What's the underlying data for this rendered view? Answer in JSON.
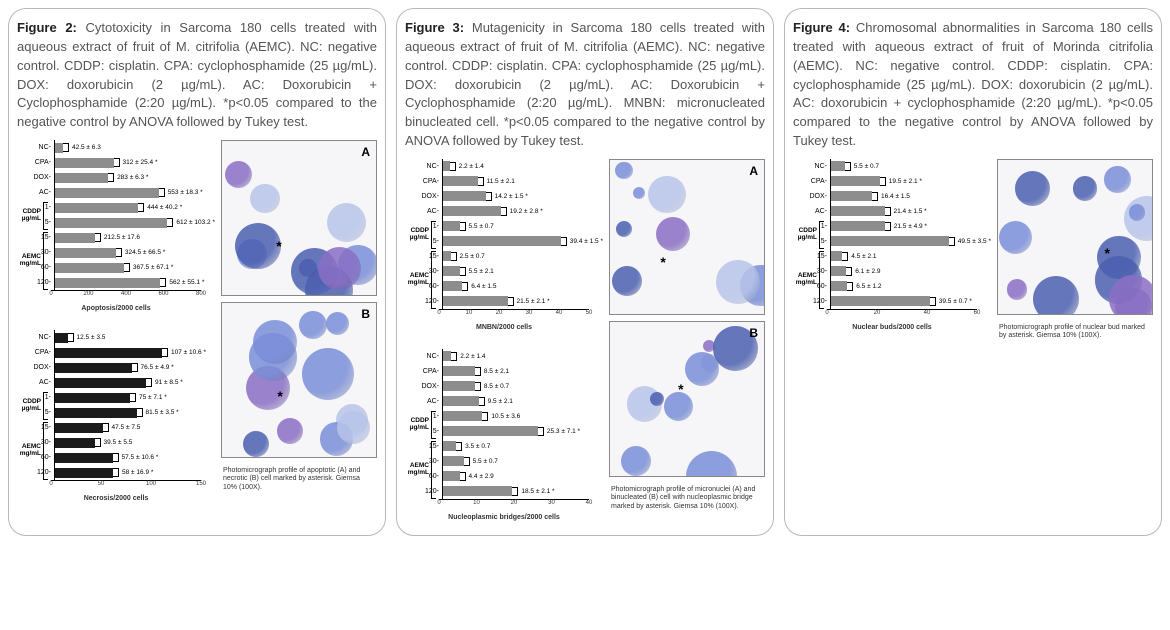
{
  "colors": {
    "bar_gray": "#8d8d8d",
    "bar_black": "#1b1b1b",
    "cell_light": "#b8c4ea",
    "cell_mid": "#7a8ed8",
    "cell_dark": "#4b5fb0",
    "cell_purple": "#8a6fc4",
    "bg": "#f6f5f8"
  },
  "figures": [
    {
      "title_bold": "Figure 2:",
      "title_rest": " Cytotoxicity in Sarcoma 180 cells treated with aqueous extract of fruit of M. citrifolia (AEMC). NC: negative control. CDDP: cisplatin. CPA: cyclophosphamide (25 µg/mL). DOX: doxorubicin (2 µg/mL). AC: Doxorubicin + Cyclophosphamide (2:20 µg/mL). *p<0.05 compared to the negative control by ANOVA followed by Tukey test.",
      "charts": [
        {
          "xlabel": "Apoptosis/2000 cells",
          "xmax": 800,
          "xticks": [
            0,
            200,
            400,
            600,
            800
          ],
          "bar_color": "#8d8d8d",
          "groups": [
            {
              "label": null,
              "rows": [
                {
                  "y": "NC",
                  "v": 42.5,
                  "t": "42.5 ± 6.3"
                },
                {
                  "y": "CPA",
                  "v": 312,
                  "t": "312 ± 25.4 *"
                },
                {
                  "y": "DOX",
                  "v": 283,
                  "t": "283 ± 6.3 *"
                },
                {
                  "y": "AC",
                  "v": 553,
                  "t": "553 ± 18.3 *"
                }
              ]
            },
            {
              "label": "CDDP µg/mL",
              "rows": [
                {
                  "y": "1",
                  "v": 444,
                  "t": "444 ± 40.2 *"
                },
                {
                  "y": "5",
                  "v": 612,
                  "t": "612 ± 103.2 *"
                }
              ]
            },
            {
              "label": "AEMC mg/mL",
              "rows": [
                {
                  "y": "15",
                  "v": 212.5,
                  "t": "212.5 ± 17.6"
                },
                {
                  "y": "30",
                  "v": 324.5,
                  "t": "324.5 ± 66.5 *"
                },
                {
                  "y": "60",
                  "v": 367.5,
                  "t": "367.5 ± 67.1 *"
                },
                {
                  "y": "120",
                  "v": 562,
                  "t": "562 ± 55.1 *"
                }
              ]
            }
          ]
        },
        {
          "xlabel": "Necrosis/2000 cells",
          "xmax": 150,
          "xticks": [
            0,
            50,
            100,
            150
          ],
          "bar_color": "#1b1b1b",
          "groups": [
            {
              "label": null,
              "rows": [
                {
                  "y": "NC",
                  "v": 12.5,
                  "t": "12.5 ± 3.5"
                },
                {
                  "y": "CPA",
                  "v": 107,
                  "t": "107 ± 10.6 *"
                },
                {
                  "y": "DOX",
                  "v": 76.5,
                  "t": "76.5 ± 4.9 *"
                },
                {
                  "y": "AC",
                  "v": 91,
                  "t": "91 ± 8.5 *"
                }
              ]
            },
            {
              "label": "CDDP µg/mL",
              "rows": [
                {
                  "y": "1",
                  "v": 75,
                  "t": "75 ± 7.1 *"
                },
                {
                  "y": "5",
                  "v": 81.5,
                  "t": "81.5 ± 3.5 *"
                }
              ]
            },
            {
              "label": "AEMC mg/mL",
              "rows": [
                {
                  "y": "15",
                  "v": 47.5,
                  "t": "47.5 ± 7.5"
                },
                {
                  "y": "30",
                  "v": 39.5,
                  "t": "39.5 ± 5.5"
                },
                {
                  "y": "60",
                  "v": 57.5,
                  "t": "57.5 ± 10.6 *"
                },
                {
                  "y": "120",
                  "v": 58,
                  "t": "58 ± 16.9 *"
                }
              ]
            }
          ]
        }
      ],
      "micrographs": [
        {
          "letter": "A",
          "caption": null
        },
        {
          "letter": "B",
          "caption": "Photomicrograph profile of apoptotic (A) and necrotic (B) cell marked by asterisk. Giemsa 10% (100X)."
        }
      ]
    },
    {
      "title_bold": "Figure 3:",
      "title_rest": " Mutagenicity in Sarcoma 180 cells treated with aqueous extract of fruit of M. citrifolia (AEMC). NC: negative control. CDDP: cisplatin. CPA: cyclophosphamide (25 µg/mL). DOX: doxorubicin (2 µg/mL). AC: Doxorubicin + Cyclophosphamide (2:20 µg/mL). MNBN: micronucleated binucleated cell. *p<0.05 compared to the negative control by ANOVA followed by Tukey test.",
      "charts": [
        {
          "xlabel": "MNBN/2000 cells",
          "xmax": 50,
          "xticks": [
            0,
            10,
            20,
            30,
            40,
            50
          ],
          "bar_color": "#8d8d8d",
          "groups": [
            {
              "label": null,
              "rows": [
                {
                  "y": "NC",
                  "v": 2.2,
                  "t": "2.2 ± 1.4"
                },
                {
                  "y": "CPA",
                  "v": 11.5,
                  "t": "11.5 ± 2.1"
                },
                {
                  "y": "DOX",
                  "v": 14.2,
                  "t": "14.2 ± 1.5 *"
                },
                {
                  "y": "AC",
                  "v": 19.2,
                  "t": "19.2 ± 2.8 *"
                }
              ]
            },
            {
              "label": "CDDP µg/mL",
              "rows": [
                {
                  "y": "1",
                  "v": 5.5,
                  "t": "5.5 ± 0.7"
                },
                {
                  "y": "5",
                  "v": 39.4,
                  "t": "39.4 ± 1.5 *"
                }
              ]
            },
            {
              "label": "AEMC mg/mL",
              "rows": [
                {
                  "y": "15",
                  "v": 2.5,
                  "t": "2.5 ± 0.7"
                },
                {
                  "y": "30",
                  "v": 5.5,
                  "t": "5.5 ± 2.1"
                },
                {
                  "y": "60",
                  "v": 6.4,
                  "t": "6.4 ± 1.5"
                },
                {
                  "y": "120",
                  "v": 21.5,
                  "t": "21.5 ± 2.1 *"
                }
              ]
            }
          ]
        },
        {
          "xlabel": "Nucleoplasmic bridges/2000 cells",
          "xmax": 40,
          "xticks": [
            0,
            10,
            20,
            30,
            40
          ],
          "bar_color": "#8d8d8d",
          "groups": [
            {
              "label": null,
              "rows": [
                {
                  "y": "NC",
                  "v": 2.2,
                  "t": "2.2 ± 1.4"
                },
                {
                  "y": "CPA",
                  "v": 8.5,
                  "t": "8.5 ± 2.1"
                },
                {
                  "y": "DOX",
                  "v": 8.5,
                  "t": "8.5 ± 0.7"
                },
                {
                  "y": "AC",
                  "v": 9.5,
                  "t": "9.5 ± 2.1"
                }
              ]
            },
            {
              "label": "CDDP µg/mL",
              "rows": [
                {
                  "y": "1",
                  "v": 10.5,
                  "t": "10.5 ± 3.6"
                },
                {
                  "y": "5",
                  "v": 25.3,
                  "t": "25.3 ± 7.1 *"
                }
              ]
            },
            {
              "label": "AEMC mg/mL",
              "rows": [
                {
                  "y": "15",
                  "v": 3.5,
                  "t": "3.5 ± 0.7"
                },
                {
                  "y": "30",
                  "v": 5.5,
                  "t": "5.5 ± 0.7"
                },
                {
                  "y": "60",
                  "v": 4.4,
                  "t": "4.4 ± 2.9"
                },
                {
                  "y": "120",
                  "v": 18.5,
                  "t": "18.5 ± 2.1 *"
                }
              ]
            }
          ]
        }
      ],
      "micrographs": [
        {
          "letter": "A",
          "caption": null
        },
        {
          "letter": "B",
          "caption": "Photomicrograph profile of micronuclei (A) and binucleated (B) cell with nucleoplasmic bridge marked by asterisk. Giemsa 10% (100X)."
        }
      ]
    },
    {
      "title_bold": "Figure 4:",
      "title_rest": " Chromosomal abnormalities in Sarcoma 180 cells treated with aqueous extract of fruit of Morinda citrifolia (AEMC). NC: negative control. CDDP: cisplatin. CPA: cyclophosphamide (25 µg/mL). DOX: doxorubicin (2 µg/mL). AC: doxorubicin + cyclophosphamide (2:20 µg/mL). *p<0.05 compared to the negative control by ANOVA followed by Tukey test.",
      "charts": [
        {
          "xlabel": "Nuclear buds/2000 cells",
          "xmax": 60,
          "xticks": [
            0,
            20,
            40,
            60
          ],
          "bar_color": "#8d8d8d",
          "groups": [
            {
              "label": null,
              "rows": [
                {
                  "y": "NC",
                  "v": 5.5,
                  "t": "5.5 ± 0.7"
                },
                {
                  "y": "CPA",
                  "v": 19.5,
                  "t": "19.5 ± 2.1 *"
                },
                {
                  "y": "DOX",
                  "v": 16.4,
                  "t": "16.4 ± 1.5"
                },
                {
                  "y": "AC",
                  "v": 21.4,
                  "t": "21.4 ± 1.5 *"
                }
              ]
            },
            {
              "label": "CDDP µg/mL",
              "rows": [
                {
                  "y": "1",
                  "v": 21.5,
                  "t": "21.5 ± 4.9 *"
                },
                {
                  "y": "5",
                  "v": 49.5,
                  "t": "49.5 ± 3.5 *"
                }
              ]
            },
            {
              "label": "AEMC mg/mL",
              "rows": [
                {
                  "y": "15",
                  "v": 4.5,
                  "t": "4.5 ± 2.1"
                },
                {
                  "y": "30",
                  "v": 6.1,
                  "t": "6.1 ± 2.9"
                },
                {
                  "y": "60",
                  "v": 6.5,
                  "t": "6.5 ± 1.2"
                },
                {
                  "y": "120",
                  "v": 39.5,
                  "t": "39.5 ± 0.7 *"
                }
              ]
            }
          ]
        }
      ],
      "micrographs": [
        {
          "letter": null,
          "caption": "Photomicrograph profile of nuclear bud marked by asterisk. Giemsa 10% (100X)."
        }
      ]
    }
  ]
}
